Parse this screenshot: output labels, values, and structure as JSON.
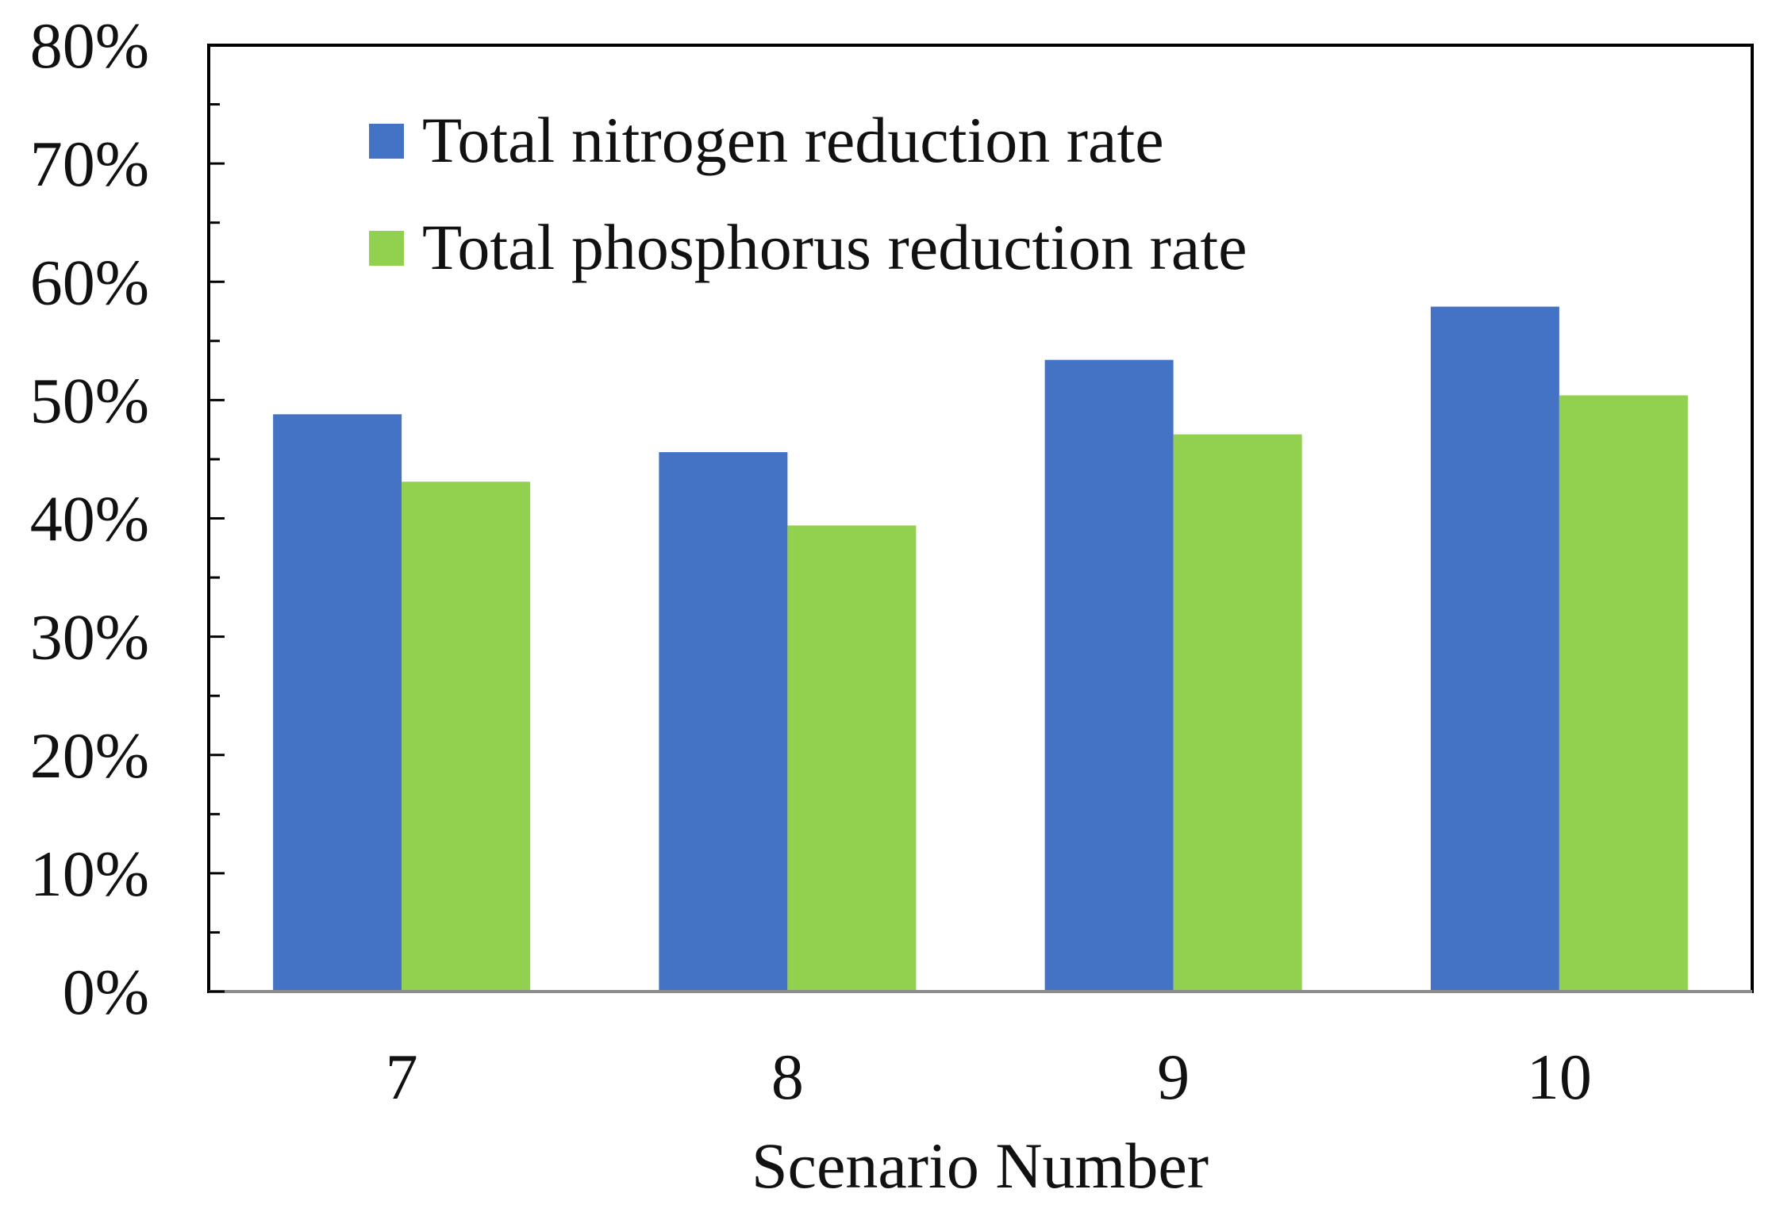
{
  "chart_data": {
    "type": "bar",
    "title": "",
    "xlabel": "Scenario Number",
    "ylabel": "",
    "categories": [
      "7",
      "8",
      "9",
      "10"
    ],
    "series": [
      {
        "name": "Total nitrogen reduction rate",
        "color": "#4472C4",
        "values": [
          48.8,
          45.6,
          53.4,
          57.9
        ]
      },
      {
        "name": "Total phosphorus reduction rate",
        "color": "#92D050",
        "values": [
          43.1,
          39.4,
          47.1,
          50.4
        ]
      }
    ],
    "ylim": [
      0,
      80
    ],
    "yticks": [
      0,
      10,
      20,
      30,
      40,
      50,
      60,
      70,
      80
    ],
    "ytick_labels": [
      "0%",
      "10%",
      "20%",
      "30%",
      "40%",
      "50%",
      "60%",
      "70%",
      "80%"
    ],
    "legend_position": "top-left",
    "grid": false
  }
}
